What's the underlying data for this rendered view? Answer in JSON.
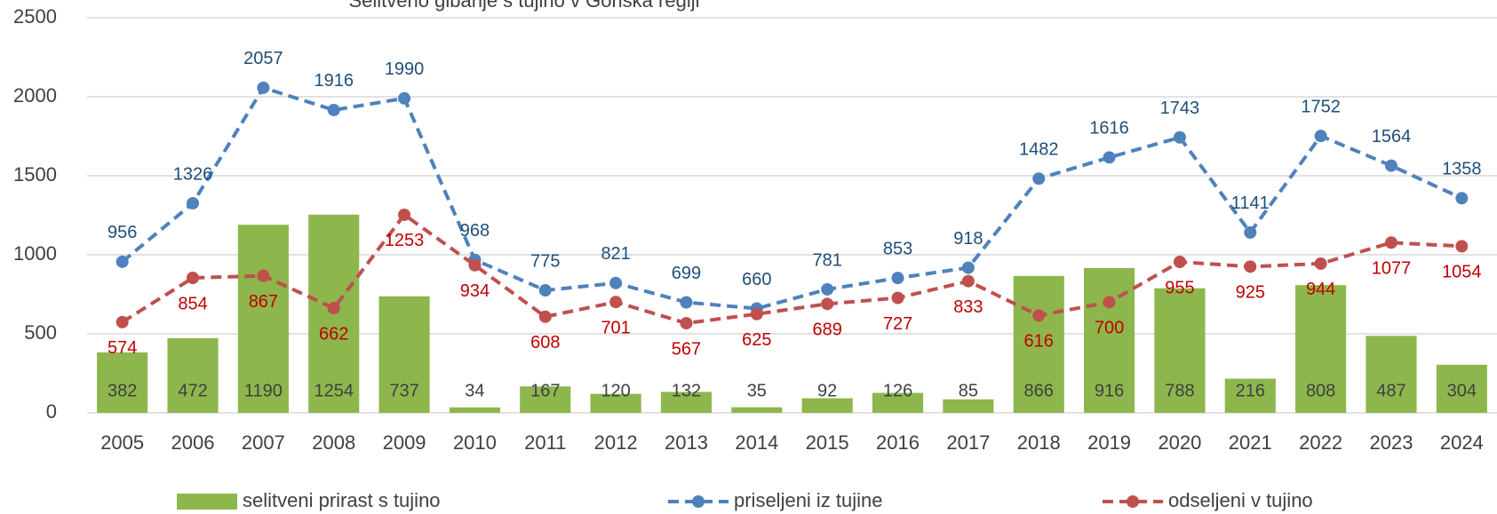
{
  "chart_data": {
    "type": "combo",
    "title": "Selitveno gibanje s tujino v Goriška regiji",
    "categories": [
      "2005",
      "2006",
      "2007",
      "2008",
      "2009",
      "2010",
      "2011",
      "2012",
      "2013",
      "2014",
      "2015",
      "2016",
      "2017",
      "2018",
      "2019",
      "2020",
      "2021",
      "2022",
      "2023",
      "2024"
    ],
    "series": [
      {
        "name": "selitveni prirast s tujino",
        "type": "bar",
        "color": "#8db64c",
        "label_color": "#404040",
        "values": [
          382,
          472,
          1190,
          1254,
          737,
          34,
          167,
          120,
          132,
          35,
          92,
          126,
          85,
          866,
          916,
          788,
          216,
          808,
          487,
          304
        ]
      },
      {
        "name": "priseljeni iz tujine",
        "type": "line",
        "color": "#4f81bd",
        "label_color": "#1f4e79",
        "values": [
          956,
          1326,
          2057,
          1916,
          1990,
          968,
          775,
          821,
          699,
          660,
          781,
          853,
          918,
          1482,
          1616,
          1743,
          1141,
          1752,
          1564,
          1358
        ]
      },
      {
        "name": "odseljeni v tujino",
        "type": "line",
        "color": "#c0504d",
        "label_color": "#c00000",
        "values": [
          574,
          854,
          867,
          662,
          1253,
          934,
          608,
          701,
          567,
          625,
          689,
          727,
          833,
          616,
          700,
          955,
          925,
          944,
          1077,
          1054
        ]
      }
    ],
    "ylim": [
      0,
      2500
    ],
    "yticks": [
      0,
      500,
      1000,
      1500,
      2000,
      2500
    ],
    "grid": true,
    "legend": "bottom"
  }
}
